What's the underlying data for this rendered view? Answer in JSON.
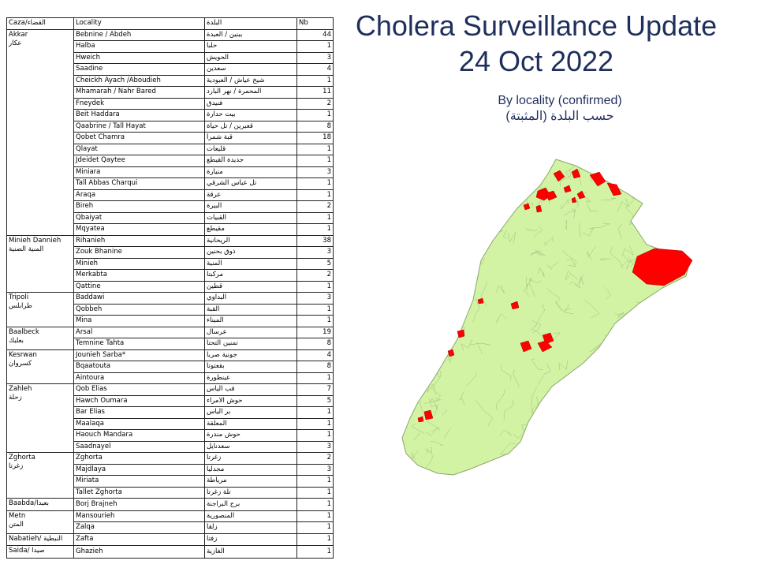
{
  "title_line1": "Cholera Surveillance Update",
  "title_line2": "24 Oct 2022",
  "subtitle_en": "By locality (confirmed)",
  "subtitle_ar": "حسب البلدة (المثبتة)",
  "colors": {
    "map_fill": "#d2f2a4",
    "map_border": "#8aa86a",
    "cases": "#ff0000",
    "title": "#1f2f5c"
  },
  "table": {
    "headers": {
      "caza": "Caza/القضاء",
      "locality": "Locality",
      "locality_ar": "البلدة",
      "nb": "Nb"
    },
    "groups": [
      {
        "caza": "Akkar",
        "caza_ar": "عكار",
        "rows": [
          {
            "loc": "Bebnine / Abdeh",
            "ar": "ببنين / العبدة",
            "nb": "44"
          },
          {
            "loc": "Halba",
            "ar": "حلبا",
            "nb": "1"
          },
          {
            "loc": "Hweich",
            "ar": "الحويش",
            "nb": "3"
          },
          {
            "loc": "Saadine",
            "ar": "سعدين",
            "nb": "4"
          },
          {
            "loc": "Cheickh Ayach /Aboudieh",
            "ar": "شيخ عياش / العبودية",
            "nb": "1"
          },
          {
            "loc": "Mhamarah / Nahr Bared",
            "ar": "المحمرة / نهر البارد",
            "nb": "11"
          },
          {
            "loc": "Fneydek",
            "ar": "فنيدق",
            "nb": "2"
          },
          {
            "loc": "Beit Haddara",
            "ar": "بيت حدارة",
            "nb": "1"
          },
          {
            "loc": "Qaabrine / Tall Hayat",
            "ar": "قعبرين / تل حياة",
            "nb": "8"
          },
          {
            "loc": "Qobet Chamra",
            "ar": "قبة شمرا",
            "nb": "18"
          },
          {
            "loc": "Qlayat",
            "ar": "قليعات",
            "nb": "1"
          },
          {
            "loc": "Jdeidet Qaytee",
            "ar": "جديدة القيطع",
            "nb": "1"
          },
          {
            "loc": "Miniara",
            "ar": "منيارة",
            "nb": "3"
          },
          {
            "loc": "Tall Abbas Charqui",
            "ar": "تل عباس الشرقي",
            "nb": "1"
          },
          {
            "loc": "Araqa",
            "ar": "عرقة",
            "nb": "1"
          },
          {
            "loc": "Bireh",
            "ar": "البيرة",
            "nb": "2"
          },
          {
            "loc": "Qbaiyat",
            "ar": "القبيات",
            "nb": "1"
          },
          {
            "loc": "Mqyatea",
            "ar": "مقيطع",
            "nb": "1"
          }
        ]
      },
      {
        "caza": "Minieh Dannieh",
        "caza_ar": "المنية الضنية",
        "rows": [
          {
            "loc": "Rihanieh",
            "ar": "الريحانية",
            "nb": "38"
          },
          {
            "loc": "Zouk Bhanine",
            "ar": "ذوق بحنين",
            "nb": "3"
          },
          {
            "loc": "Minieh",
            "ar": "المنية",
            "nb": "5"
          },
          {
            "loc": "Merkabta",
            "ar": "مركبتا",
            "nb": "2"
          },
          {
            "loc": "Qattine",
            "ar": "قطين",
            "nb": "1"
          }
        ]
      },
      {
        "caza": "Tripoli",
        "caza_ar": "طرابلس",
        "rows": [
          {
            "loc": "Baddawi",
            "ar": "البداوي",
            "nb": "3"
          },
          {
            "loc": "Qobbeh",
            "ar": "القبة",
            "nb": "1"
          },
          {
            "loc": "Mina",
            "ar": "الميناء",
            "nb": "1"
          }
        ]
      },
      {
        "caza": "Baalbeck",
        "caza_ar": "بعلبك",
        "rows": [
          {
            "loc": "Arsal",
            "ar": "عرسال",
            "nb": "19"
          },
          {
            "loc": "Temnine Tahta",
            "ar": "تمنين التحتا",
            "nb": "8"
          }
        ]
      },
      {
        "caza": "Kesrwan",
        "caza_ar": "كسروان",
        "rows": [
          {
            "loc": "Jounieh Sarba*",
            "ar": "جونية صربا",
            "nb": "4"
          },
          {
            "loc": "Bqaatouta",
            "ar": "بقعتوتا",
            "nb": "8"
          },
          {
            "loc": "Aintoura",
            "ar": "عينطورة",
            "nb": "1"
          }
        ]
      },
      {
        "caza": "Zahleh",
        "caza_ar": "زحلة",
        "rows": [
          {
            "loc": "Qob Elias",
            "ar": "قب الياس",
            "nb": "7"
          },
          {
            "loc": "Hawch Oumara",
            "ar": "حوش الامراء",
            "nb": "5"
          },
          {
            "loc": "Bar Elias",
            "ar": "بر الياس",
            "nb": "1"
          },
          {
            "loc": "Maalaqa",
            "ar": "المعلقة",
            "nb": "1"
          },
          {
            "loc": "Haouch Mandara",
            "ar": "حوش مندرة",
            "nb": "1"
          },
          {
            "loc": "Saadnayel",
            "ar": "سعدنايل",
            "nb": "3"
          }
        ]
      },
      {
        "caza": "Zghorta",
        "caza_ar": "زغرتا",
        "rows": [
          {
            "loc": "Zghorta",
            "ar": "زغرتا",
            "nb": "2"
          },
          {
            "loc": "Majdlaya",
            "ar": "مجدليا",
            "nb": "3"
          },
          {
            "loc": "Miriata",
            "ar": "مرياطة",
            "nb": "1"
          },
          {
            "loc": "Tallet Zghorta",
            "ar": "تلة زغرتا",
            "nb": "1"
          }
        ]
      },
      {
        "caza": "Baabda/بعبدا",
        "caza_ar": "",
        "rows": [
          {
            "loc": "Borj Brajneh",
            "ar": "برج البراجنة",
            "nb": "1"
          }
        ]
      },
      {
        "caza": "Metn",
        "caza_ar": "المتن",
        "rows": [
          {
            "loc": "Mansourieh",
            "ar": "المنصورية",
            "nb": "1"
          },
          {
            "loc": "Zalqa",
            "ar": "زلقا",
            "nb": "1"
          }
        ]
      },
      {
        "caza": "Nabatieh/ النبطية",
        "caza_ar": "",
        "rows": [
          {
            "loc": "Zafta",
            "ar": "زفتا",
            "nb": "1"
          }
        ]
      },
      {
        "caza": "Saida/ صيدا",
        "caza_ar": "",
        "rows": [
          {
            "loc": "Ghazieh",
            "ar": "الغازية",
            "nb": "1"
          }
        ]
      }
    ]
  }
}
